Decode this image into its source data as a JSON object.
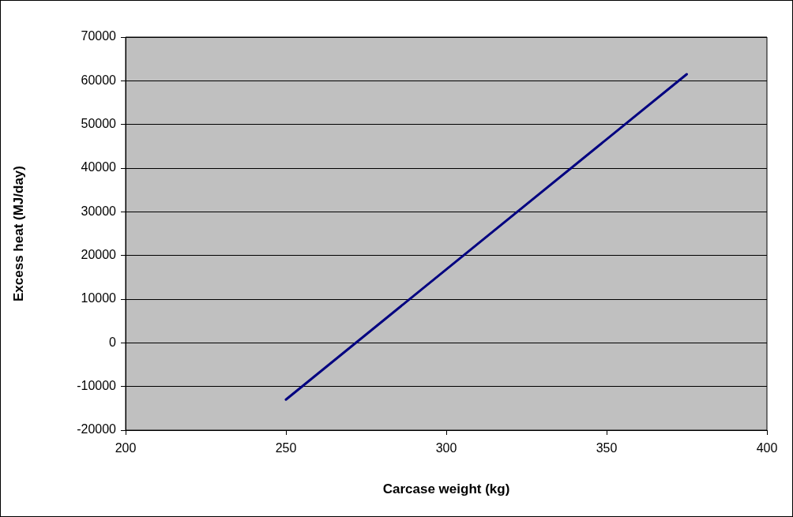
{
  "chart_data": {
    "type": "line",
    "xlabel": "Carcase weight (kg)",
    "ylabel": "Excess heat (MJ/day)",
    "x": [
      250,
      375
    ],
    "series": [
      {
        "color": "#000080",
        "values": [
          -13000,
          61500
        ]
      }
    ],
    "xlim": [
      200,
      400
    ],
    "xticks": [
      200,
      250,
      300,
      350,
      400
    ],
    "ylim": [
      -20000,
      70000
    ],
    "yticks": [
      -20000,
      -10000,
      0,
      10000,
      20000,
      30000,
      40000,
      50000,
      60000,
      70000
    ],
    "grid": "y",
    "marker": "none",
    "line_style": "solid",
    "legend": false
  }
}
